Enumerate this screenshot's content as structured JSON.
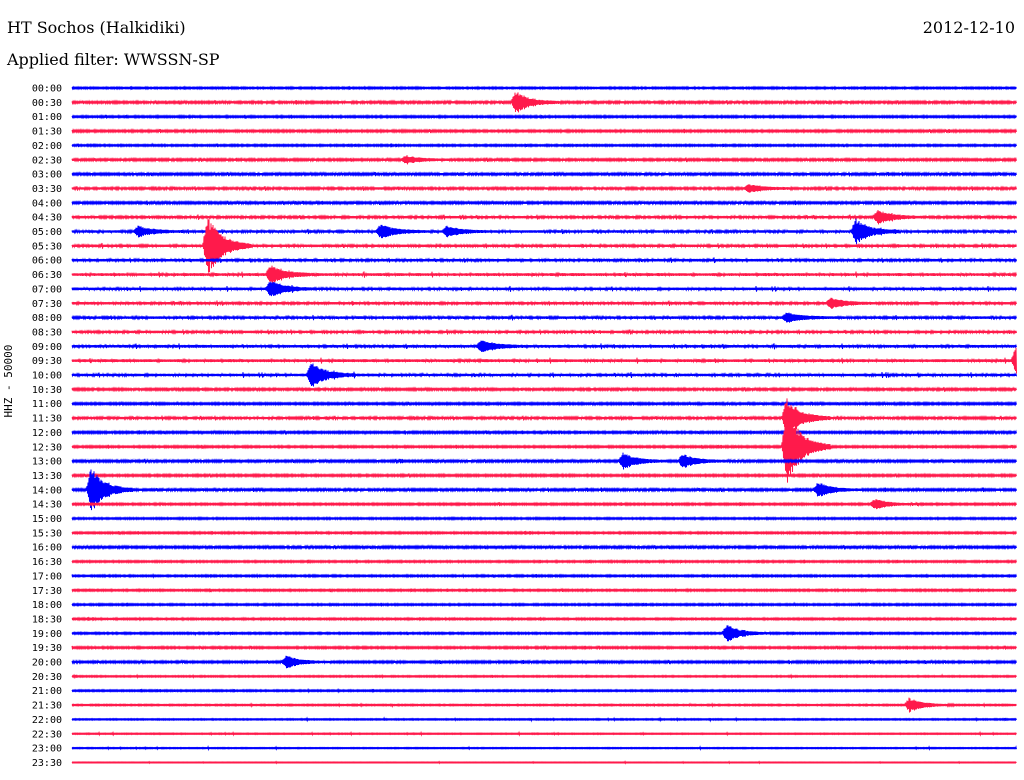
{
  "header": {
    "station": "HT Sochos (Halkidiki)",
    "date": "2012-12-10",
    "filter": "Applied filter: WWSSN-SP"
  },
  "chart_data": {
    "type": "line",
    "ylabel": "HHZ - 50000",
    "colors": {
      "odd_half_hour": "#ff1a4b",
      "even_hour": "#0000ff"
    },
    "rows": [
      "00:00",
      "00:30",
      "01:00",
      "01:30",
      "02:00",
      "02:30",
      "03:00",
      "03:30",
      "04:00",
      "04:30",
      "05:00",
      "05:30",
      "06:00",
      "06:30",
      "07:00",
      "07:30",
      "08:00",
      "08:30",
      "09:00",
      "09:30",
      "10:00",
      "10:30",
      "11:00",
      "11:30",
      "12:00",
      "12:30",
      "13:00",
      "13:30",
      "14:00",
      "14:30",
      "15:00",
      "15:30",
      "16:00",
      "16:30",
      "17:00",
      "17:30",
      "18:00",
      "18:30",
      "19:00",
      "19:30",
      "20:00",
      "20:30",
      "21:00",
      "21:30",
      "22:00",
      "22:30",
      "23:00",
      "23:30"
    ],
    "noise_level": [
      0.55,
      0.7,
      0.6,
      0.65,
      0.55,
      0.7,
      0.7,
      0.75,
      0.7,
      0.8,
      0.85,
      0.85,
      0.85,
      0.95,
      0.9,
      0.85,
      0.85,
      0.85,
      0.9,
      0.95,
      0.9,
      0.7,
      0.65,
      0.75,
      0.65,
      0.6,
      0.7,
      0.65,
      0.7,
      0.6,
      0.55,
      0.55,
      0.7,
      0.55,
      0.55,
      0.55,
      0.55,
      0.55,
      0.55,
      0.6,
      0.65,
      0.45,
      0.5,
      0.45,
      0.4,
      0.35,
      0.35,
      0.25
    ],
    "events": [
      {
        "row": "00:30",
        "minute": 14.1,
        "amplitude": 11
      },
      {
        "row": "02:30",
        "minute": 10.6,
        "amplitude": 4
      },
      {
        "row": "03:30",
        "minute": 21.5,
        "amplitude": 4
      },
      {
        "row": "04:30",
        "minute": 25.6,
        "amplitude": 7
      },
      {
        "row": "05:00",
        "minute": 2.1,
        "amplitude": 5
      },
      {
        "row": "05:00",
        "minute": 9.8,
        "amplitude": 7
      },
      {
        "row": "05:00",
        "minute": 11.9,
        "amplitude": 5
      },
      {
        "row": "05:00",
        "minute": 24.9,
        "amplitude": 12
      },
      {
        "row": "05:30",
        "minute": 4.3,
        "amplitude": 30
      },
      {
        "row": "06:30",
        "minute": 6.3,
        "amplitude": 9
      },
      {
        "row": "07:00",
        "minute": 6.3,
        "amplitude": 8
      },
      {
        "row": "07:30",
        "minute": 24.1,
        "amplitude": 5
      },
      {
        "row": "08:00",
        "minute": 22.7,
        "amplitude": 5
      },
      {
        "row": "09:00",
        "minute": 13.0,
        "amplitude": 6
      },
      {
        "row": "09:30",
        "minute": 30.0,
        "amplitude": 14
      },
      {
        "row": "10:00",
        "minute": 7.6,
        "amplitude": 12
      },
      {
        "row": "11:30",
        "minute": 22.7,
        "amplitude": 20
      },
      {
        "row": "12:30",
        "minute": 22.7,
        "amplitude": 40
      },
      {
        "row": "13:00",
        "minute": 17.5,
        "amplitude": 8
      },
      {
        "row": "13:00",
        "minute": 19.4,
        "amplitude": 7
      },
      {
        "row": "14:00",
        "minute": 0.6,
        "amplitude": 22
      },
      {
        "row": "14:00",
        "minute": 23.7,
        "amplitude": 7
      },
      {
        "row": "14:30",
        "minute": 25.5,
        "amplitude": 5
      },
      {
        "row": "19:00",
        "minute": 20.8,
        "amplitude": 9
      },
      {
        "row": "20:00",
        "minute": 6.8,
        "amplitude": 6
      },
      {
        "row": "21:30",
        "minute": 26.6,
        "amplitude": 7
      }
    ]
  }
}
